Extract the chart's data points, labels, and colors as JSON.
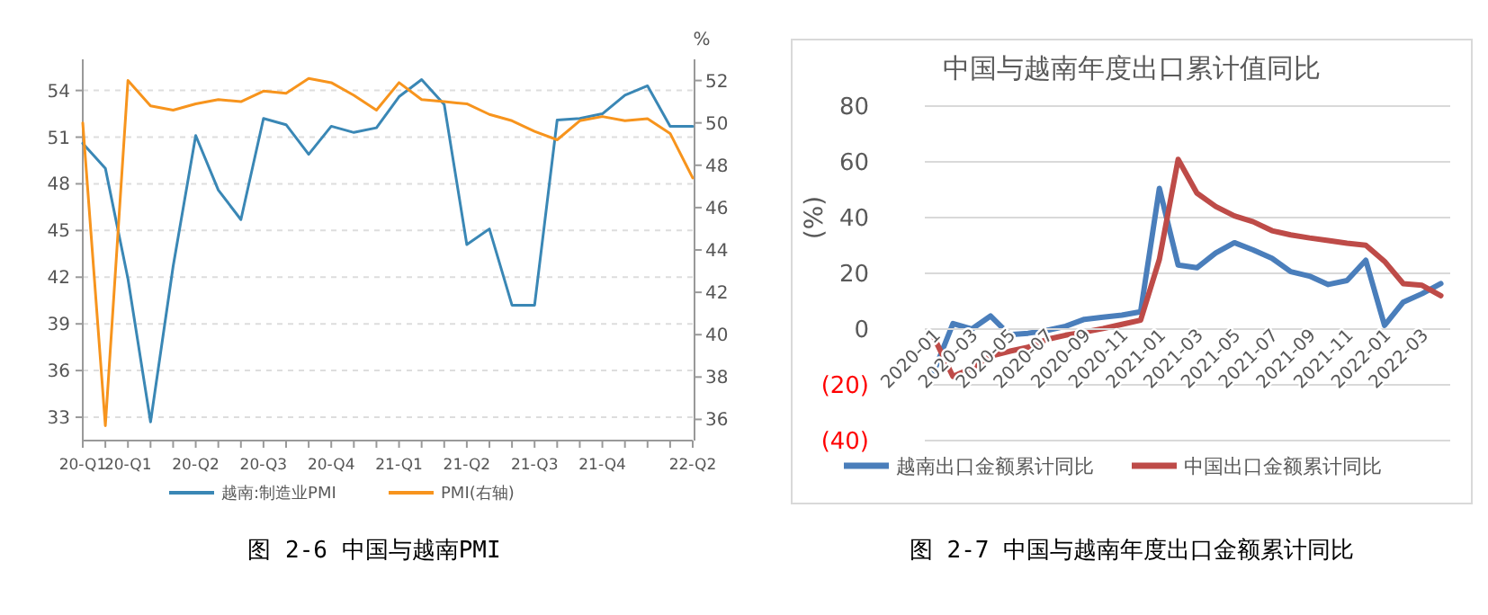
{
  "chart_data": [
    {
      "type": "line",
      "categories": [
        "20-Q1",
        null,
        "20-Q1",
        null,
        null,
        "20-Q2",
        null,
        null,
        "20-Q3",
        null,
        null,
        "20-Q4",
        null,
        null,
        "21-Q1",
        null,
        null,
        "21-Q2",
        null,
        null,
        "21-Q3",
        null,
        null,
        "21-Q4",
        null,
        null,
        null,
        "22-Q2"
      ],
      "series": [
        {
          "name": "越南:制造业PMI",
          "color": "#3a87b5",
          "values": [
            50.6,
            49.0,
            41.9,
            32.7,
            42.7,
            51.1,
            47.6,
            45.7,
            52.2,
            51.8,
            49.9,
            51.7,
            51.3,
            51.6,
            53.6,
            54.7,
            53.1,
            44.1,
            45.1,
            40.2,
            40.2,
            52.1,
            52.2,
            52.5,
            53.7,
            54.3,
            51.7,
            51.7
          ]
        },
        {
          "name": "PMI(右轴)",
          "color": "#f7941d",
          "axis": "y2",
          "values": [
            50.0,
            35.7,
            52.0,
            50.8,
            50.6,
            50.9,
            51.1,
            51.0,
            51.5,
            51.4,
            52.1,
            51.9,
            51.3,
            50.6,
            51.9,
            51.1,
            51.0,
            50.9,
            50.4,
            50.1,
            49.6,
            49.2,
            50.1,
            50.3,
            50.1,
            50.2,
            49.5,
            47.4
          ]
        }
      ],
      "ylim": [
        31.5,
        56
      ],
      "yticks": [
        33,
        36,
        39,
        42,
        45,
        48,
        51,
        54
      ],
      "y2lim": [
        35,
        53
      ],
      "y2ticks": [
        36,
        38,
        40,
        42,
        44,
        46,
        48,
        50,
        52
      ],
      "y2label": "%",
      "grid": "y",
      "legend": "bottom",
      "annotations": [
        "图 2-6 中国与越南PMI"
      ]
    },
    {
      "type": "line",
      "title": "中国与越南年度出口累计值同比",
      "ylabel": "(%)",
      "categories": [
        "2020-01",
        null,
        "2020-03",
        null,
        "2020-05",
        null,
        "2020-07",
        null,
        "2020-09",
        null,
        "2020-11",
        null,
        "2021-01",
        null,
        "2021-03",
        null,
        "2021-05",
        null,
        "2021-07",
        null,
        "2021-09",
        null,
        "2021-11",
        null,
        "2022-01",
        null,
        "2022-03",
        null
      ],
      "series": [
        {
          "name": "越南出口金额累计同比",
          "color": "#4a7ebb",
          "values": [
            -15,
            2,
            0,
            4.7,
            -2,
            -1.5,
            -0.5,
            1,
            3.5,
            4.3,
            5,
            6.2,
            50.5,
            23,
            22,
            27.3,
            31,
            28.4,
            25.4,
            20.6,
            19,
            16,
            17.4,
            24.7,
            1.3,
            9.7,
            12.7,
            16.3
          ]
        },
        {
          "name": "中国出口金额累计同比",
          "color": "#be4b48",
          "values": [
            -3.2,
            -17,
            -14,
            -9.7,
            -8,
            -6.5,
            -3.7,
            -2.2,
            -1.1,
            0.2,
            1.7,
            3.2,
            25,
            60.9,
            48.8,
            44,
            40.6,
            38.5,
            35.3,
            33.8,
            32.7,
            31.8,
            30.8,
            30.1,
            24.3,
            16.3,
            15.7,
            12
          ]
        }
      ],
      "ylim": [
        -40,
        80
      ],
      "yticks": [
        {
          "value": -40,
          "label": "(40)"
        },
        {
          "value": -20,
          "label": "(20)"
        },
        0,
        20,
        40,
        60,
        80
      ],
      "grid": "y",
      "legend": "bottom",
      "annotations": [
        "图 2-7 中国与越南年度出口金额累计同比"
      ]
    }
  ]
}
